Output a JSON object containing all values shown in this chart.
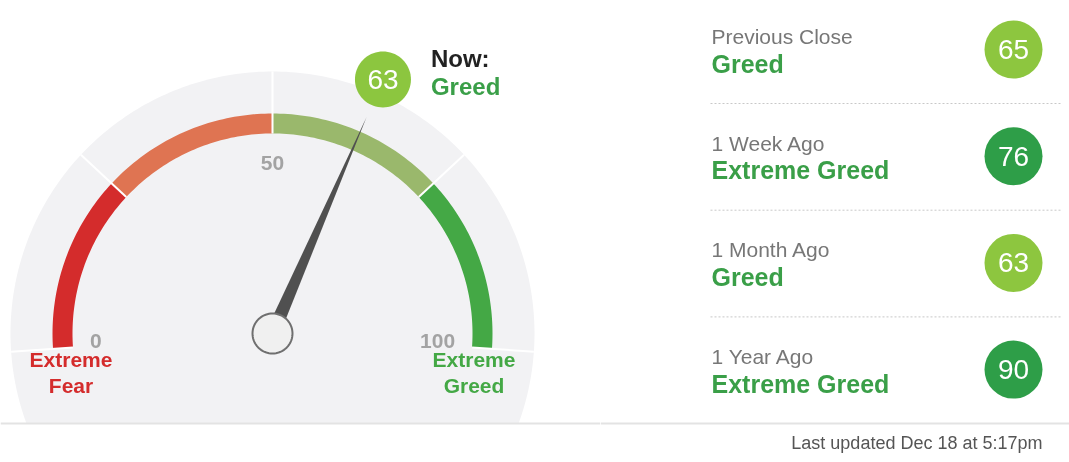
{
  "chart_data": [
    {
      "type": "donut",
      "categories": [
        "Extreme Fear",
        null,
        "Greed",
        "Extreme Greed"
      ],
      "values": [
        25,
        25,
        25,
        25
      ],
      "colors": [
        "#d42c2c",
        "#df7452",
        "#9ab86c",
        "#44a845"
      ],
      "needle": "Greed",
      "annotations": [
        "63",
        "Now:",
        "0",
        "50",
        "100"
      ]
    },
    {
      "type": "other",
      "values": [
        65,
        76,
        63,
        90
      ],
      "colors": [
        "#8dc63f",
        "#2e9e48",
        "#8dc63f",
        "#2e9e48"
      ],
      "data_labels": true,
      "annotations": [
        "Previous Close",
        "Greed",
        "1 Week Ago",
        "Extreme Greed",
        "1 Month Ago",
        "Greed",
        "1 Year Ago",
        "Extreme Greed",
        "Last updated Dec 18 at 5:17pm"
      ]
    }
  ]
}
